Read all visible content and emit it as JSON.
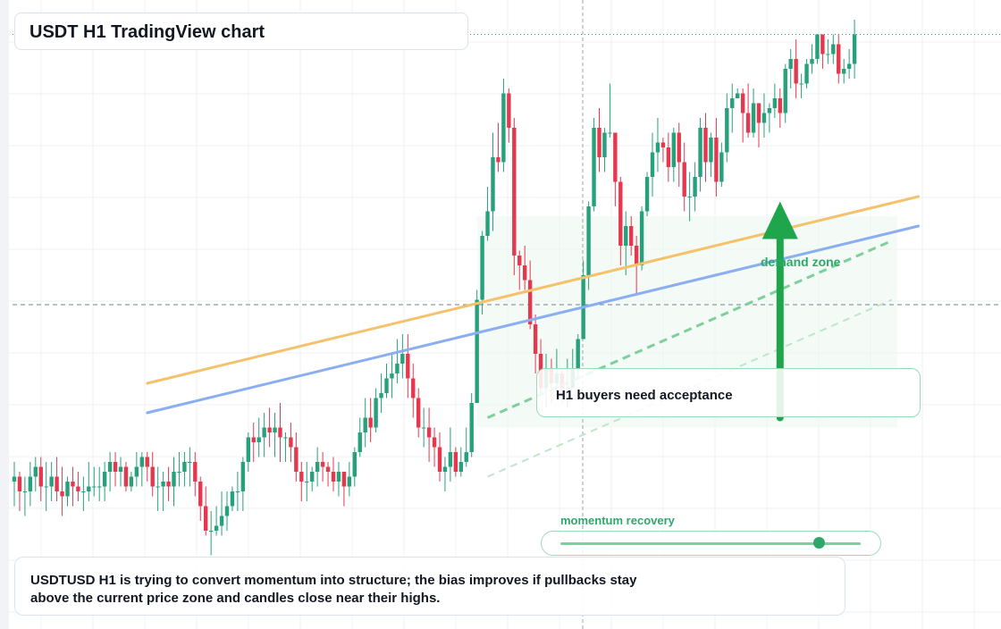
{
  "title": "USDT H1 TradingView chart",
  "callout": {
    "text": "H1 buyers need acceptance"
  },
  "demand_zone": {
    "label": "demand zone"
  },
  "slider": {
    "label": "momentum recovery",
    "value": 0.86
  },
  "note": {
    "text": "USDTUSD H1 is trying to convert momentum into structure; the bias improves if pullbacks stay above the current price zone and candles close near their highs."
  },
  "colors": {
    "up": "#26a17b",
    "down": "#e5384f",
    "ma_fast": "#f5c26b",
    "ma_slow": "#8aaef0",
    "trend": "#2fa76b",
    "arrow": "#1fa64d"
  },
  "chart_data": {
    "type": "candlestick",
    "timeframe": "H1",
    "ylim": [
      0,
      100
    ],
    "grid": true,
    "current_price": 61,
    "moving_averages": [
      {
        "name": "fast",
        "x": [
          25,
          170
        ],
        "y": [
          36,
          74
        ]
      },
      {
        "name": "slow",
        "x": [
          25,
          170
        ],
        "y": [
          30,
          68
        ]
      }
    ],
    "trendlines": [
      {
        "x": [
          89,
          165
        ],
        "y": [
          29,
          65
        ],
        "style": "dashed"
      },
      {
        "x": [
          89,
          165
        ],
        "y": [
          17,
          53
        ],
        "style": "dashed-light"
      }
    ],
    "demand_zone_range": {
      "x": [
        87,
        166
      ],
      "y": [
        27,
        70
      ]
    },
    "arrow": {
      "x": 144,
      "y": [
        29,
        73
      ]
    },
    "candles": [
      [
        16,
        17,
        11,
        20,
        8
      ],
      [
        17,
        14,
        10,
        18,
        8
      ],
      [
        14,
        14,
        9,
        17,
        8
      ],
      [
        14,
        17,
        11,
        20,
        8
      ],
      [
        17,
        19,
        14,
        21,
        10
      ],
      [
        19,
        15,
        12,
        21,
        10
      ],
      [
        15,
        15,
        10,
        20,
        8
      ],
      [
        15,
        17,
        12,
        20,
        10
      ],
      [
        17,
        14,
        12,
        21,
        10
      ],
      [
        14,
        13,
        9,
        19,
        8
      ],
      [
        13,
        16,
        11,
        17,
        10
      ],
      [
        16,
        15,
        11,
        19,
        8
      ],
      [
        15,
        14,
        12,
        18,
        10
      ],
      [
        14,
        14,
        10,
        17,
        9
      ],
      [
        14,
        15,
        12,
        20,
        10
      ],
      [
        15,
        15,
        13,
        19,
        11
      ],
      [
        15,
        15,
        12,
        19,
        11
      ],
      [
        15,
        18,
        12,
        20,
        10
      ],
      [
        18,
        20,
        14,
        22,
        11
      ],
      [
        20,
        18,
        15,
        22,
        13
      ],
      [
        18,
        19,
        15,
        21,
        13
      ],
      [
        19,
        15,
        14,
        20,
        12
      ],
      [
        15,
        17,
        14,
        18,
        10
      ],
      [
        17,
        19,
        15,
        22,
        14
      ],
      [
        19,
        21,
        15,
        22,
        16
      ],
      [
        21,
        19,
        16,
        22,
        14
      ],
      [
        19,
        15,
        13,
        22,
        13
      ],
      [
        15,
        15,
        10,
        19,
        7
      ],
      [
        15,
        16,
        10,
        18,
        8
      ],
      [
        16,
        15,
        12,
        19,
        8
      ],
      [
        15,
        18,
        11,
        21,
        9
      ],
      [
        18,
        18,
        15,
        22,
        14
      ],
      [
        18,
        20,
        15,
        22,
        14
      ],
      [
        20,
        20,
        15,
        23,
        15
      ],
      [
        20,
        16,
        13,
        22,
        10
      ],
      [
        16,
        11,
        8,
        17,
        6
      ],
      [
        11,
        6,
        5,
        15,
        1
      ],
      [
        6,
        6,
        1,
        10,
        0
      ],
      [
        6,
        7,
        5,
        11,
        0
      ],
      [
        7,
        9,
        5,
        14,
        3
      ],
      [
        9,
        11,
        6,
        14,
        5
      ],
      [
        11,
        14,
        10,
        15,
        8
      ],
      [
        14,
        14,
        10,
        18,
        11
      ],
      [
        14,
        20,
        10,
        21,
        12
      ],
      [
        20,
        25,
        18,
        26,
        16
      ],
      [
        25,
        24,
        20,
        28,
        20
      ],
      [
        24,
        25,
        21,
        29,
        19
      ],
      [
        25,
        27,
        21,
        30,
        20
      ],
      [
        27,
        26,
        23,
        31,
        23
      ],
      [
        26,
        27,
        21,
        30,
        22
      ],
      [
        27,
        25,
        20,
        32,
        19
      ],
      [
        25,
        25,
        20,
        26,
        19
      ],
      [
        25,
        23,
        20,
        28,
        20
      ],
      [
        23,
        18,
        16,
        26,
        15
      ],
      [
        18,
        16,
        12,
        20,
        12
      ],
      [
        16,
        16,
        12,
        20,
        12
      ],
      [
        16,
        18,
        14,
        19,
        13
      ],
      [
        18,
        20,
        15,
        23,
        17
      ],
      [
        20,
        19,
        16,
        22,
        14
      ],
      [
        19,
        18,
        15,
        20,
        12
      ],
      [
        18,
        16,
        14,
        21,
        11
      ],
      [
        16,
        18,
        13,
        20,
        11
      ],
      [
        18,
        15,
        11,
        18,
        10
      ],
      [
        15,
        17,
        13,
        20,
        12
      ],
      [
        17,
        22,
        15,
        23,
        14
      ],
      [
        22,
        26,
        21,
        29,
        21
      ],
      [
        26,
        29,
        23,
        33,
        25
      ],
      [
        29,
        27,
        24,
        33,
        25
      ],
      [
        27,
        33,
        26,
        35,
        27
      ],
      [
        33,
        34,
        30,
        38,
        29
      ],
      [
        34,
        37,
        33,
        40,
        30
      ],
      [
        37,
        38,
        33,
        42,
        35
      ],
      [
        38,
        40,
        36,
        45,
        34
      ],
      [
        40,
        42,
        37,
        46,
        36
      ],
      [
        42,
        37,
        33,
        46,
        31
      ],
      [
        37,
        33,
        29,
        40,
        29
      ],
      [
        33,
        27,
        25,
        35,
        22
      ],
      [
        27,
        27,
        23,
        31,
        21
      ],
      [
        27,
        25,
        20,
        31,
        20
      ],
      [
        25,
        23,
        19,
        27,
        19
      ],
      [
        23,
        18,
        16,
        26,
        14
      ],
      [
        18,
        19,
        14,
        21,
        14
      ],
      [
        19,
        22,
        16,
        27,
        19
      ],
      [
        22,
        18,
        17,
        23,
        16
      ],
      [
        18,
        20,
        17,
        23,
        17
      ],
      [
        20,
        22,
        19,
        27,
        21
      ],
      [
        22,
        32,
        21,
        34,
        31
      ],
      [
        32,
        53,
        32,
        55,
        51
      ],
      [
        53,
        66,
        50,
        67,
        65
      ],
      [
        66,
        71,
        65,
        76,
        66
      ],
      [
        71,
        82,
        67,
        87,
        79
      ],
      [
        82,
        81,
        79,
        89,
        77
      ],
      [
        81,
        95,
        79,
        98,
        92
      ],
      [
        95,
        88,
        85,
        96,
        86
      ],
      [
        88,
        62,
        58,
        90,
        57
      ],
      [
        62,
        60,
        55,
        63,
        55
      ],
      [
        60,
        57,
        55,
        64,
        53
      ],
      [
        57,
        48,
        47,
        61,
        45
      ],
      [
        48,
        42,
        38,
        50,
        36
      ],
      [
        42,
        35,
        34,
        45,
        31
      ],
      [
        35,
        39,
        31,
        42,
        31
      ],
      [
        39,
        36,
        32,
        41,
        30
      ],
      [
        36,
        38,
        34,
        43,
        32
      ],
      [
        38,
        35,
        32,
        39,
        30
      ],
      [
        35,
        35,
        31,
        41,
        30
      ],
      [
        35,
        39,
        35,
        43,
        37
      ],
      [
        39,
        45,
        37,
        46,
        36
      ],
      [
        45,
        58,
        45,
        61,
        57
      ],
      [
        58,
        72,
        55,
        73,
        68
      ],
      [
        72,
        88,
        71,
        90,
        85
      ],
      [
        88,
        82,
        79,
        92,
        78
      ],
      [
        82,
        87,
        79,
        88,
        81
      ],
      [
        87,
        87,
        86,
        97,
        84
      ],
      [
        87,
        77,
        72,
        87,
        72
      ],
      [
        77,
        64,
        60,
        78,
        59
      ],
      [
        64,
        68,
        58,
        71,
        56
      ],
      [
        68,
        64,
        62,
        70,
        58
      ],
      [
        64,
        60,
        54,
        66,
        53
      ],
      [
        60,
        71,
        59,
        72,
        59
      ],
      [
        71,
        78,
        70,
        79,
        69
      ],
      [
        78,
        83,
        74,
        87,
        73
      ],
      [
        83,
        85,
        79,
        90,
        82
      ],
      [
        85,
        84,
        81,
        86,
        79
      ],
      [
        84,
        80,
        77,
        87,
        75
      ],
      [
        80,
        87,
        77,
        88,
        79
      ],
      [
        87,
        81,
        76,
        89,
        77
      ],
      [
        81,
        74,
        71,
        85,
        73
      ],
      [
        74,
        74,
        69,
        79,
        68
      ],
      [
        74,
        78,
        71,
        81,
        75
      ],
      [
        78,
        88,
        75,
        90,
        86
      ],
      [
        88,
        81,
        77,
        91,
        79
      ],
      [
        81,
        86,
        78,
        87,
        83
      ],
      [
        86,
        77,
        74,
        90,
        72
      ],
      [
        77,
        83,
        76,
        85,
        75
      ],
      [
        83,
        92,
        81,
        95,
        88
      ],
      [
        92,
        94,
        87,
        97,
        90
      ],
      [
        94,
        95,
        94,
        96,
        91
      ],
      [
        95,
        91,
        85,
        96,
        87
      ],
      [
        91,
        87,
        86,
        97,
        82
      ],
      [
        87,
        93,
        86,
        96,
        83
      ],
      [
        93,
        89,
        84,
        92,
        84
      ],
      [
        89,
        91,
        86,
        95,
        88
      ],
      [
        91,
        92,
        87,
        93,
        90
      ],
      [
        92,
        94,
        90,
        97,
        88
      ],
      [
        94,
        91,
        88,
        96,
        88
      ],
      [
        91,
        100,
        89,
        101,
        99
      ],
      [
        100,
        102,
        96,
        104,
        98
      ],
      [
        102,
        97,
        94,
        106,
        94
      ],
      [
        97,
        97,
        94,
        99,
        92
      ],
      [
        97,
        101,
        96,
        102,
        99
      ],
      [
        101,
        102,
        99,
        105,
        99
      ],
      [
        102,
        107,
        101,
        107,
        105
      ],
      [
        107,
        103,
        100,
        107,
        101
      ],
      [
        103,
        103,
        101,
        106,
        100
      ],
      [
        103,
        105,
        101,
        107,
        102
      ],
      [
        105,
        99,
        97,
        107,
        97
      ],
      [
        99,
        100,
        97,
        102,
        97
      ],
      [
        100,
        101,
        98,
        104,
        98
      ],
      [
        101,
        107,
        98,
        110,
        102
      ]
    ]
  }
}
